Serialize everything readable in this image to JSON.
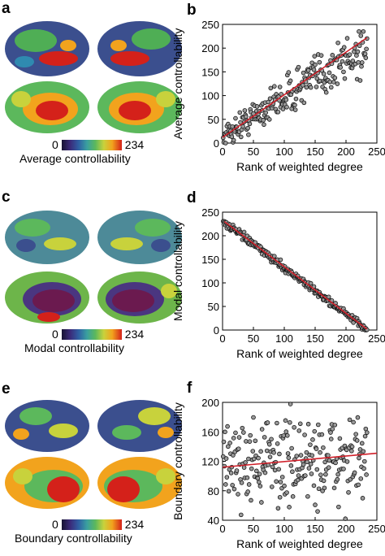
{
  "panels": {
    "a": {
      "letter": "a",
      "cbar_min": "0",
      "cbar_max": "234",
      "caption": "Average controllability"
    },
    "c": {
      "letter": "c",
      "cbar_min": "0",
      "cbar_max": "234",
      "caption": "Modal controllability"
    },
    "e": {
      "letter": "e",
      "cbar_min": "0",
      "cbar_max": "234",
      "caption": "Boundary controllability"
    }
  },
  "colormap": [
    "#161232",
    "#3b2a7a",
    "#2f5fa3",
    "#3aa0a0",
    "#5cb85c",
    "#c8d23c",
    "#f2a31d",
    "#d4211a"
  ],
  "fit_line_color": "#d0202a",
  "chart_data": [
    {
      "id": "b",
      "letter": "b",
      "type": "scatter",
      "xlabel": "Rank of weighted degree",
      "ylabel": "Average controllability",
      "xlim": [
        0,
        250
      ],
      "ylim": [
        0,
        250
      ],
      "xticks": [
        0,
        50,
        100,
        150,
        200,
        250
      ],
      "yticks": [
        0,
        50,
        100,
        150,
        200,
        250
      ],
      "trend": "increasing, scattered",
      "fit_line": {
        "x": [
          0,
          234
        ],
        "y": [
          12,
          222
        ]
      }
    },
    {
      "id": "d",
      "letter": "d",
      "type": "scatter",
      "xlabel": "Rank of weighted degree",
      "ylabel": "Modal controllability",
      "xlim": [
        0,
        250
      ],
      "ylim": [
        0,
        250
      ],
      "xticks": [
        0,
        50,
        100,
        150,
        200,
        250
      ],
      "yticks": [
        0,
        50,
        100,
        150,
        200,
        250
      ],
      "trend": "decreasing, tight",
      "fit_line": {
        "x": [
          3,
          234
        ],
        "y": [
          230,
          2
        ]
      }
    },
    {
      "id": "f",
      "letter": "f",
      "type": "scatter",
      "xlabel": "Rank of weighted degree",
      "ylabel": "Boundary controllability",
      "xlim": [
        0,
        250
      ],
      "ylim": [
        40,
        200
      ],
      "xticks": [
        0,
        50,
        100,
        150,
        200,
        250
      ],
      "yticks": [
        40,
        80,
        120,
        160,
        200
      ],
      "trend": "flat, noisy",
      "fit_line": {
        "x": [
          0,
          250
        ],
        "y": [
          112,
          131
        ]
      }
    }
  ]
}
